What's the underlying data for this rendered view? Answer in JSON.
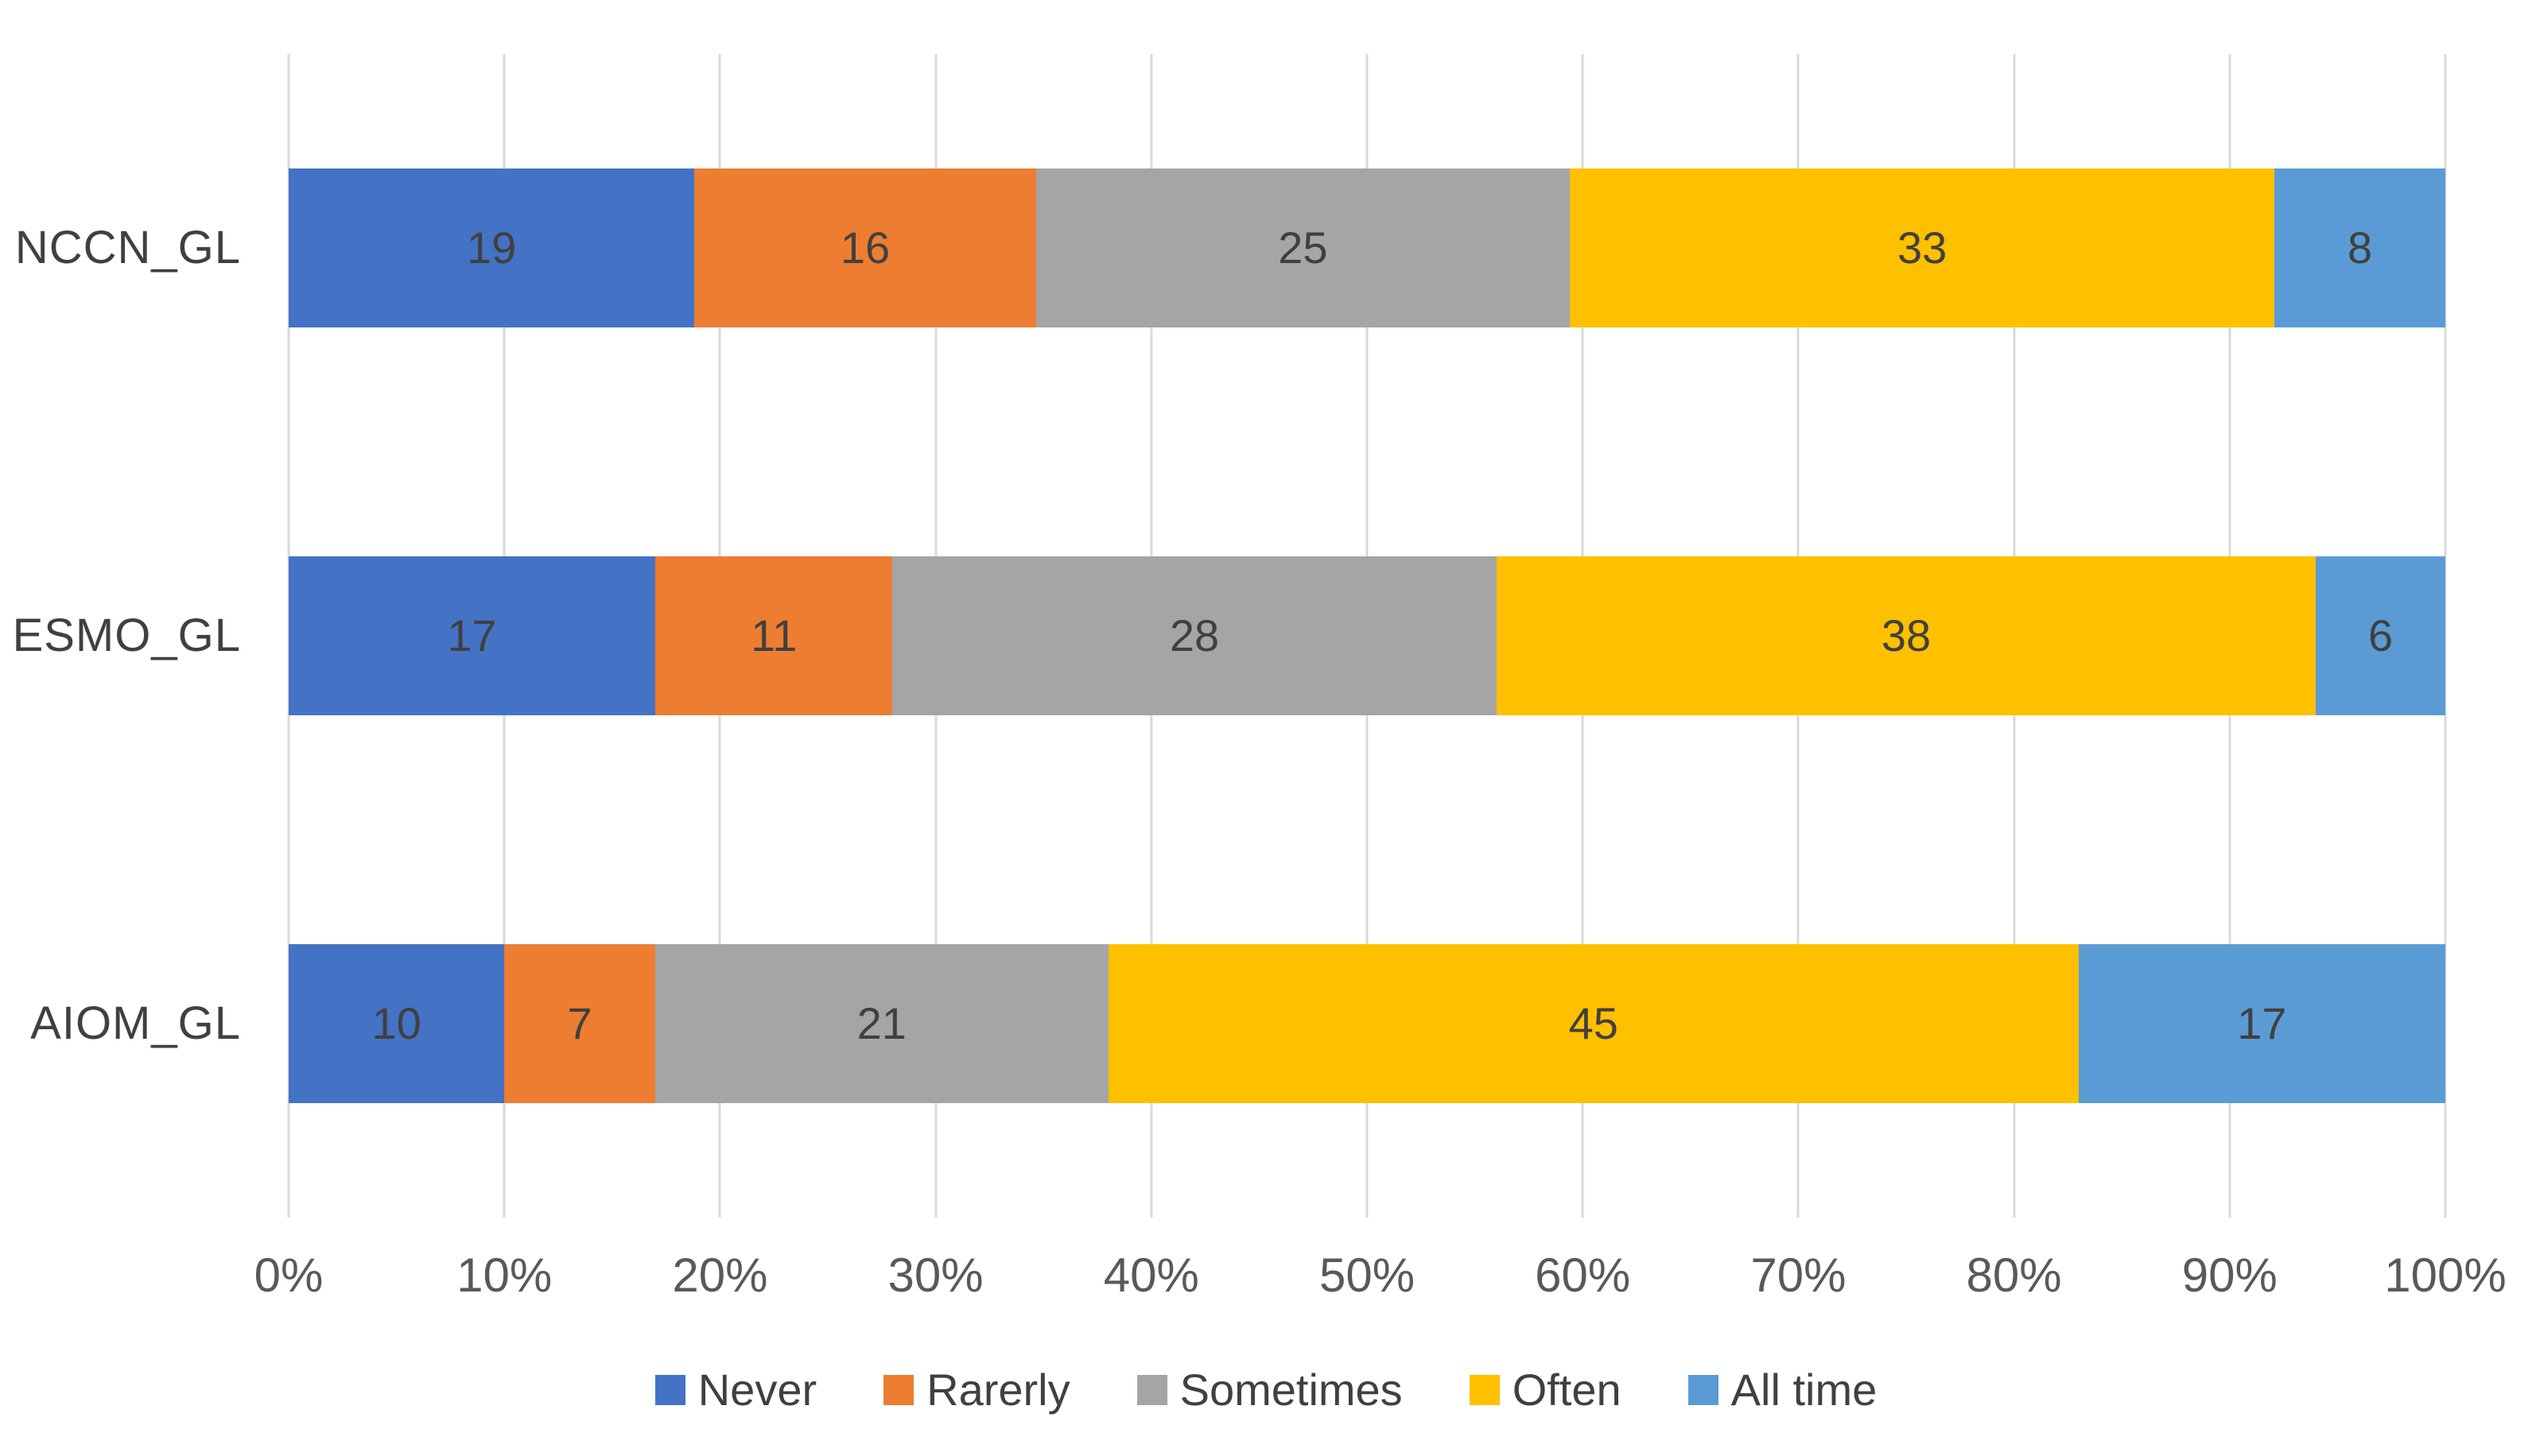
{
  "chart_data": {
    "type": "bar",
    "subtype": "horizontal-stacked-100-percent",
    "title": "",
    "categories": [
      "NCCN_GL",
      "ESMO_GL",
      "AIOM_GL"
    ],
    "series": [
      {
        "name": "Never",
        "color": "#4472C4",
        "values": [
          19,
          17,
          10
        ]
      },
      {
        "name": "Rarerly",
        "color": "#ED7D31",
        "values": [
          16,
          11,
          7
        ]
      },
      {
        "name": "Sometimes",
        "color": "#A5A5A5",
        "values": [
          25,
          28,
          21
        ]
      },
      {
        "name": "Often",
        "color": "#FFC000",
        "values": [
          33,
          38,
          45
        ]
      },
      {
        "name": "All time",
        "color": "#5B9BD5",
        "values": [
          8,
          6,
          17
        ]
      }
    ],
    "x_axis": {
      "min": 0,
      "max": 100,
      "tick_step": 10,
      "ticks": [
        "0%",
        "10%",
        "20%",
        "30%",
        "40%",
        "50%",
        "60%",
        "70%",
        "80%",
        "90%",
        "100%"
      ]
    },
    "grid": true,
    "gridline_color": "#D9D9D9",
    "data_label_color": "#404040",
    "axis_label_color": "#595959",
    "legend": {
      "position": "bottom",
      "entries": [
        "Never",
        "Rarerly",
        "Sometimes",
        "Often",
        "All time"
      ]
    }
  }
}
